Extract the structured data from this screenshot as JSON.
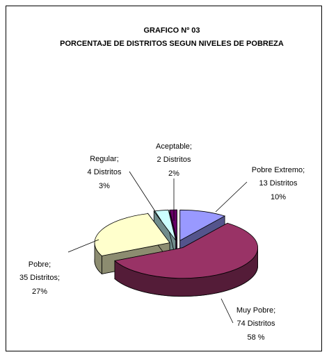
{
  "chart_data": {
    "type": "pie",
    "title": "GRAFICO Nº 03",
    "subtitle": "PORCENTAJE DE DISTRITOS SEGUN NIVELES DE POBREZA",
    "categories": [
      "Pobre Extremo;",
      "Muy Pobre;",
      "Pobre;",
      "Regular;",
      "Aceptable;"
    ],
    "values": [
      13,
      74,
      35,
      4,
      2
    ],
    "value_labels": [
      "13 Distritos",
      "74 Distritos",
      "35  Distritos;",
      "4 Distritos",
      "2 Distritos"
    ],
    "percent_labels": [
      "10%",
      "58 %",
      "27%",
      "3%",
      "2%"
    ],
    "colors": [
      "#9999ff",
      "#993366",
      "#ffffcc",
      "#ccffff",
      "#660066"
    ]
  }
}
